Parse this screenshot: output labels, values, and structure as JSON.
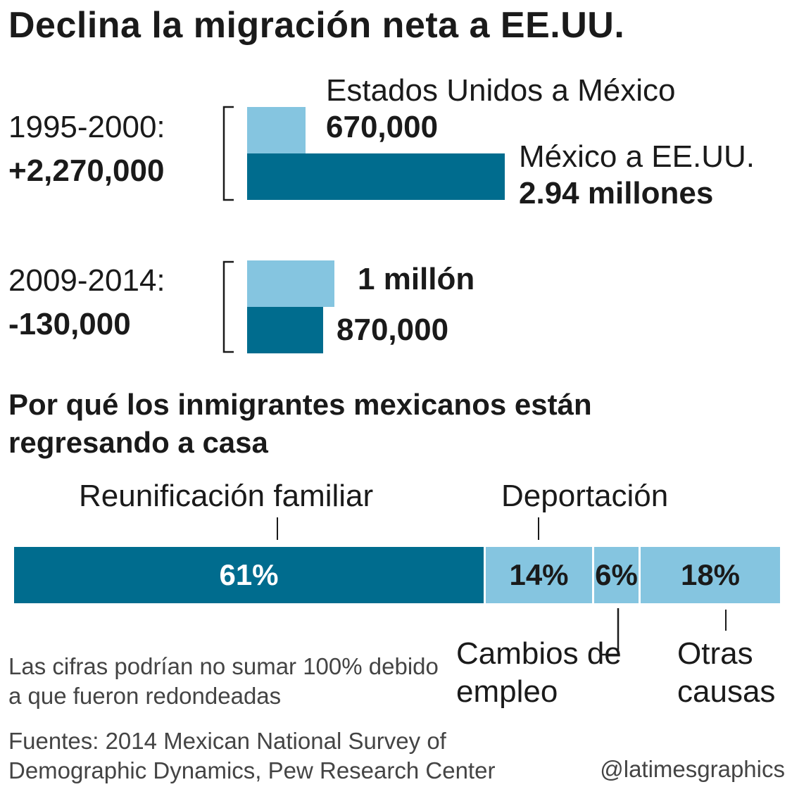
{
  "title": "Declina la migración neta a EE.UU.",
  "colors": {
    "dark": "#006c8e",
    "light": "#85c5e0"
  },
  "chart_data": [
    {
      "type": "bar",
      "title": "Declina la migración neta a EE.UU.",
      "categories": [
        "1995-2000",
        "2009-2014"
      ],
      "series": [
        {
          "name": "Estados Unidos a México",
          "values": [
            670000,
            1000000
          ],
          "labels": [
            "670,000",
            "1 millón"
          ]
        },
        {
          "name": "México a EE.UU.",
          "values": [
            2940000,
            870000
          ],
          "labels": [
            "2.94 millones",
            "870,000"
          ]
        }
      ],
      "periods": [
        {
          "label": "1995-2000:",
          "net": "+2,270,000"
        },
        {
          "label": "2009-2014:",
          "net": "-130,000"
        }
      ]
    },
    {
      "type": "bar",
      "title": "Por qué los inmigrantes mexicanos están regresando a casa",
      "categories": [
        "Reunificación familiar",
        "Deportación",
        "Cambios de empleo",
        "Otras causas"
      ],
      "values": [
        61,
        14,
        6,
        18
      ],
      "labels": [
        "61%",
        "14%",
        "6%",
        "18%"
      ]
    }
  ],
  "note": "Las cifras podrían no sumar 100% debido a que fueron redondeadas",
  "source": "Fuentes: 2014 Mexican National Survey of Demographic Dynamics, Pew Research Center",
  "credit": "@latimesgraphics"
}
